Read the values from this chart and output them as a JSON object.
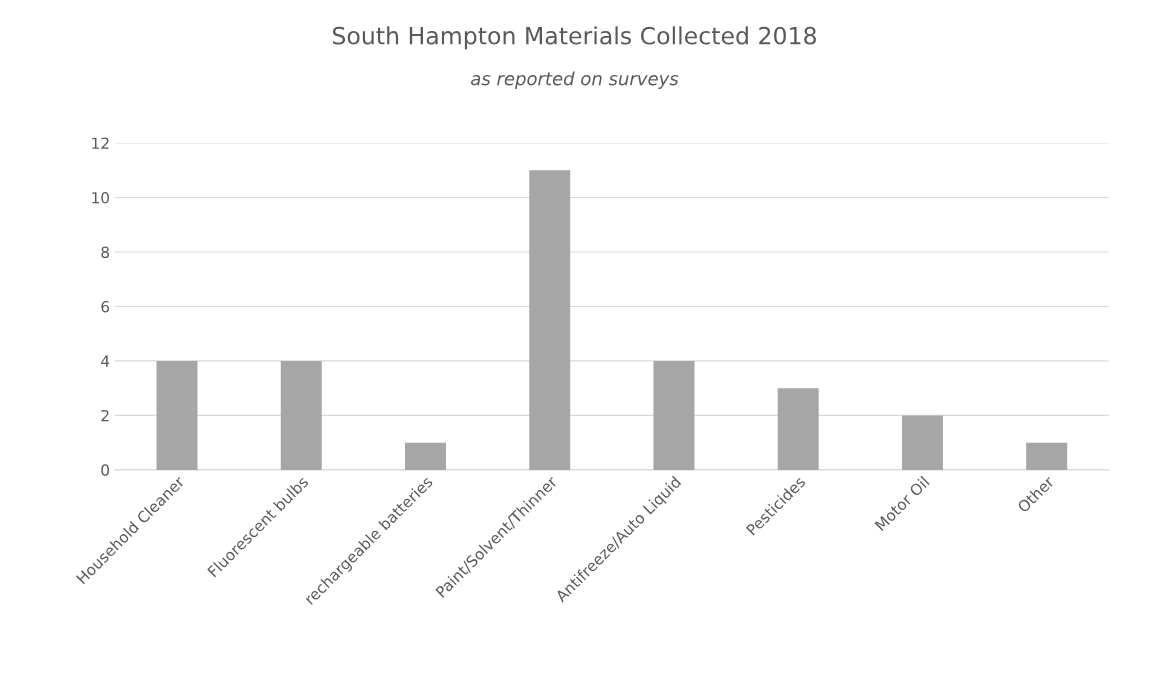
{
  "chart_data": {
    "type": "bar",
    "title": "South Hampton Materials Collected 2018",
    "subtitle": "as reported on surveys",
    "categories": [
      "Household Cleaner",
      "Fluorescent bulbs",
      "rechargeable batteries",
      "Paint/Solvent/Thinner",
      "Antifreeze/Auto Liquid",
      "Pesticides",
      "Motor Oil",
      "Other"
    ],
    "values": [
      4,
      4,
      1,
      11,
      4,
      3,
      2,
      1
    ],
    "color": "#a6a6a6",
    "ylim": [
      0,
      12
    ],
    "yticks": [
      0,
      2,
      4,
      6,
      8,
      10,
      12
    ],
    "grid": "y",
    "legend": false
  }
}
